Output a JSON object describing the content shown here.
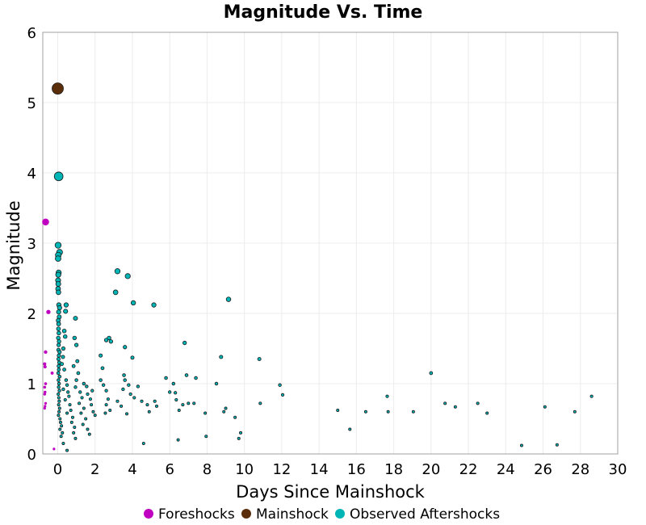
{
  "chart_data": {
    "type": "scatter",
    "title": "Magnitude Vs. Time",
    "xlabel": "Days Since Mainshock",
    "ylabel": "Magnitude",
    "xlim": [
      -0.8,
      30
    ],
    "ylim": [
      0,
      6
    ],
    "x_ticks": [
      0,
      2,
      4,
      6,
      8,
      10,
      12,
      14,
      16,
      18,
      20,
      22,
      24,
      26,
      28,
      30
    ],
    "y_ticks": [
      0,
      1,
      2,
      3,
      4,
      5,
      6
    ],
    "grid": true,
    "legend_position": "bottom",
    "series": [
      {
        "name": "Foreshocks",
        "color": "#c000c0",
        "points": [
          [
            -0.65,
            3.3
          ],
          [
            -0.5,
            2.02
          ],
          [
            -0.65,
            1.45
          ],
          [
            -0.7,
            1.28
          ],
          [
            -0.68,
            1.24
          ],
          [
            -0.3,
            1.15
          ],
          [
            -0.65,
            1.0
          ],
          [
            -0.7,
            0.95
          ],
          [
            -0.68,
            0.88
          ],
          [
            -0.7,
            0.85
          ],
          [
            -0.65,
            0.72
          ],
          [
            -0.68,
            0.68
          ],
          [
            -0.7,
            0.65
          ],
          [
            -0.2,
            0.07
          ]
        ]
      },
      {
        "name": "Mainshock",
        "color": "#5a2e0a",
        "points": [
          [
            0.0,
            5.2
          ]
        ]
      },
      {
        "name": "Observed Aftershocks",
        "color": "#00b5b5",
        "points": [
          [
            0.05,
            3.95
          ],
          [
            0.02,
            2.97
          ],
          [
            0.1,
            2.87
          ],
          [
            0.03,
            2.83
          ],
          [
            0.02,
            2.78
          ],
          [
            0.05,
            2.58
          ],
          [
            0.03,
            2.55
          ],
          [
            0.02,
            2.47
          ],
          [
            0.03,
            2.42
          ],
          [
            0.02,
            2.35
          ],
          [
            0.04,
            2.3
          ],
          [
            0.06,
            2.12
          ],
          [
            0.1,
            2.08
          ],
          [
            0.05,
            2.02
          ],
          [
            0.08,
            1.95
          ],
          [
            0.03,
            1.9
          ],
          [
            0.05,
            1.85
          ],
          [
            0.04,
            1.78
          ],
          [
            0.06,
            1.72
          ],
          [
            0.03,
            1.65
          ],
          [
            0.07,
            1.6
          ],
          [
            0.05,
            1.55
          ],
          [
            0.04,
            1.48
          ],
          [
            0.1,
            1.45
          ],
          [
            0.06,
            1.4
          ],
          [
            0.04,
            1.35
          ],
          [
            0.08,
            1.3
          ],
          [
            0.05,
            1.25
          ],
          [
            0.06,
            1.2
          ],
          [
            0.03,
            1.15
          ],
          [
            0.1,
            1.1
          ],
          [
            0.04,
            1.05
          ],
          [
            0.07,
            1.0
          ],
          [
            0.05,
            0.95
          ],
          [
            0.09,
            0.9
          ],
          [
            0.03,
            0.85
          ],
          [
            0.06,
            0.8
          ],
          [
            0.08,
            0.75
          ],
          [
            0.05,
            0.7
          ],
          [
            0.1,
            0.65
          ],
          [
            0.07,
            0.6
          ],
          [
            0.04,
            0.55
          ],
          [
            0.12,
            0.5
          ],
          [
            0.15,
            0.45
          ],
          [
            0.2,
            0.4
          ],
          [
            0.12,
            0.35
          ],
          [
            0.25,
            0.3
          ],
          [
            0.18,
            0.25
          ],
          [
            0.3,
            0.15
          ],
          [
            0.5,
            0.05
          ],
          [
            0.45,
            2.12
          ],
          [
            0.42,
            2.03
          ],
          [
            0.35,
            1.75
          ],
          [
            0.4,
            1.67
          ],
          [
            0.3,
            1.5
          ],
          [
            0.28,
            1.38
          ],
          [
            0.22,
            1.28
          ],
          [
            0.35,
            1.2
          ],
          [
            0.45,
            1.05
          ],
          [
            0.5,
            0.98
          ],
          [
            0.3,
            0.92
          ],
          [
            0.55,
            0.88
          ],
          [
            0.6,
            0.82
          ],
          [
            0.4,
            0.77
          ],
          [
            0.65,
            0.7
          ],
          [
            0.7,
            0.62
          ],
          [
            0.5,
            0.58
          ],
          [
            0.8,
            0.52
          ],
          [
            0.75,
            0.45
          ],
          [
            0.9,
            0.38
          ],
          [
            0.85,
            0.3
          ],
          [
            0.95,
            0.22
          ],
          [
            0.95,
            1.93
          ],
          [
            0.9,
            1.65
          ],
          [
            1.0,
            1.55
          ],
          [
            1.05,
            1.32
          ],
          [
            0.85,
            1.25
          ],
          [
            1.1,
            1.15
          ],
          [
            1.0,
            1.05
          ],
          [
            0.95,
            0.95
          ],
          [
            1.2,
            0.88
          ],
          [
            1.3,
            0.8
          ],
          [
            1.15,
            0.72
          ],
          [
            1.4,
            0.65
          ],
          [
            1.25,
            0.58
          ],
          [
            1.5,
            0.5
          ],
          [
            1.35,
            0.42
          ],
          [
            1.6,
            0.35
          ],
          [
            1.7,
            0.28
          ],
          [
            1.4,
            1.0
          ],
          [
            1.55,
            0.96
          ],
          [
            1.6,
            0.85
          ],
          [
            1.75,
            0.78
          ],
          [
            1.8,
            0.7
          ],
          [
            1.9,
            0.6
          ],
          [
            2.0,
            0.55
          ],
          [
            1.85,
            0.9
          ],
          [
            2.3,
            1.4
          ],
          [
            2.4,
            1.22
          ],
          [
            2.3,
            1.05
          ],
          [
            2.45,
            0.98
          ],
          [
            2.6,
            0.9
          ],
          [
            2.7,
            0.78
          ],
          [
            2.6,
            0.7
          ],
          [
            2.8,
            0.62
          ],
          [
            2.55,
            0.58
          ],
          [
            2.6,
            1.62
          ],
          [
            2.75,
            1.65
          ],
          [
            2.85,
            1.6
          ],
          [
            3.2,
            2.6
          ],
          [
            3.1,
            2.3
          ],
          [
            3.75,
            2.53
          ],
          [
            4.05,
            2.15
          ],
          [
            3.6,
            1.52
          ],
          [
            4.0,
            1.37
          ],
          [
            3.55,
            1.12
          ],
          [
            3.6,
            1.05
          ],
          [
            3.8,
            0.98
          ],
          [
            3.5,
            0.92
          ],
          [
            3.9,
            0.85
          ],
          [
            4.1,
            0.8
          ],
          [
            3.2,
            0.75
          ],
          [
            3.4,
            0.68
          ],
          [
            4.3,
            0.96
          ],
          [
            4.5,
            0.75
          ],
          [
            4.8,
            0.7
          ],
          [
            4.9,
            0.6
          ],
          [
            3.7,
            0.57
          ],
          [
            4.6,
            0.15
          ],
          [
            5.15,
            2.12
          ],
          [
            5.2,
            0.75
          ],
          [
            5.3,
            0.68
          ],
          [
            5.8,
            1.08
          ],
          [
            6.0,
            0.88
          ],
          [
            6.2,
            1.0
          ],
          [
            6.3,
            0.87
          ],
          [
            6.35,
            0.77
          ],
          [
            6.5,
            0.62
          ],
          [
            6.45,
            0.2
          ],
          [
            6.7,
            0.7
          ],
          [
            6.8,
            1.58
          ],
          [
            6.9,
            1.12
          ],
          [
            7.0,
            0.72
          ],
          [
            7.3,
            0.72
          ],
          [
            7.4,
            1.08
          ],
          [
            7.9,
            0.58
          ],
          [
            7.95,
            0.25
          ],
          [
            8.5,
            1.0
          ],
          [
            8.75,
            1.38
          ],
          [
            8.9,
            0.6
          ],
          [
            9.0,
            0.65
          ],
          [
            9.15,
            2.2
          ],
          [
            9.5,
            0.52
          ],
          [
            9.7,
            0.22
          ],
          [
            9.8,
            0.3
          ],
          [
            10.8,
            1.35
          ],
          [
            10.85,
            0.72
          ],
          [
            11.9,
            0.98
          ],
          [
            12.05,
            0.84
          ],
          [
            15.0,
            0.62
          ],
          [
            15.65,
            0.35
          ],
          [
            16.5,
            0.6
          ],
          [
            17.65,
            0.82
          ],
          [
            17.7,
            0.6
          ],
          [
            19.05,
            0.6
          ],
          [
            20.0,
            1.15
          ],
          [
            20.75,
            0.72
          ],
          [
            21.3,
            0.67
          ],
          [
            22.5,
            0.72
          ],
          [
            23.0,
            0.58
          ],
          [
            24.85,
            0.12
          ],
          [
            26.1,
            0.67
          ],
          [
            26.75,
            0.13
          ],
          [
            27.7,
            0.6
          ],
          [
            28.6,
            0.82
          ]
        ]
      }
    ]
  }
}
